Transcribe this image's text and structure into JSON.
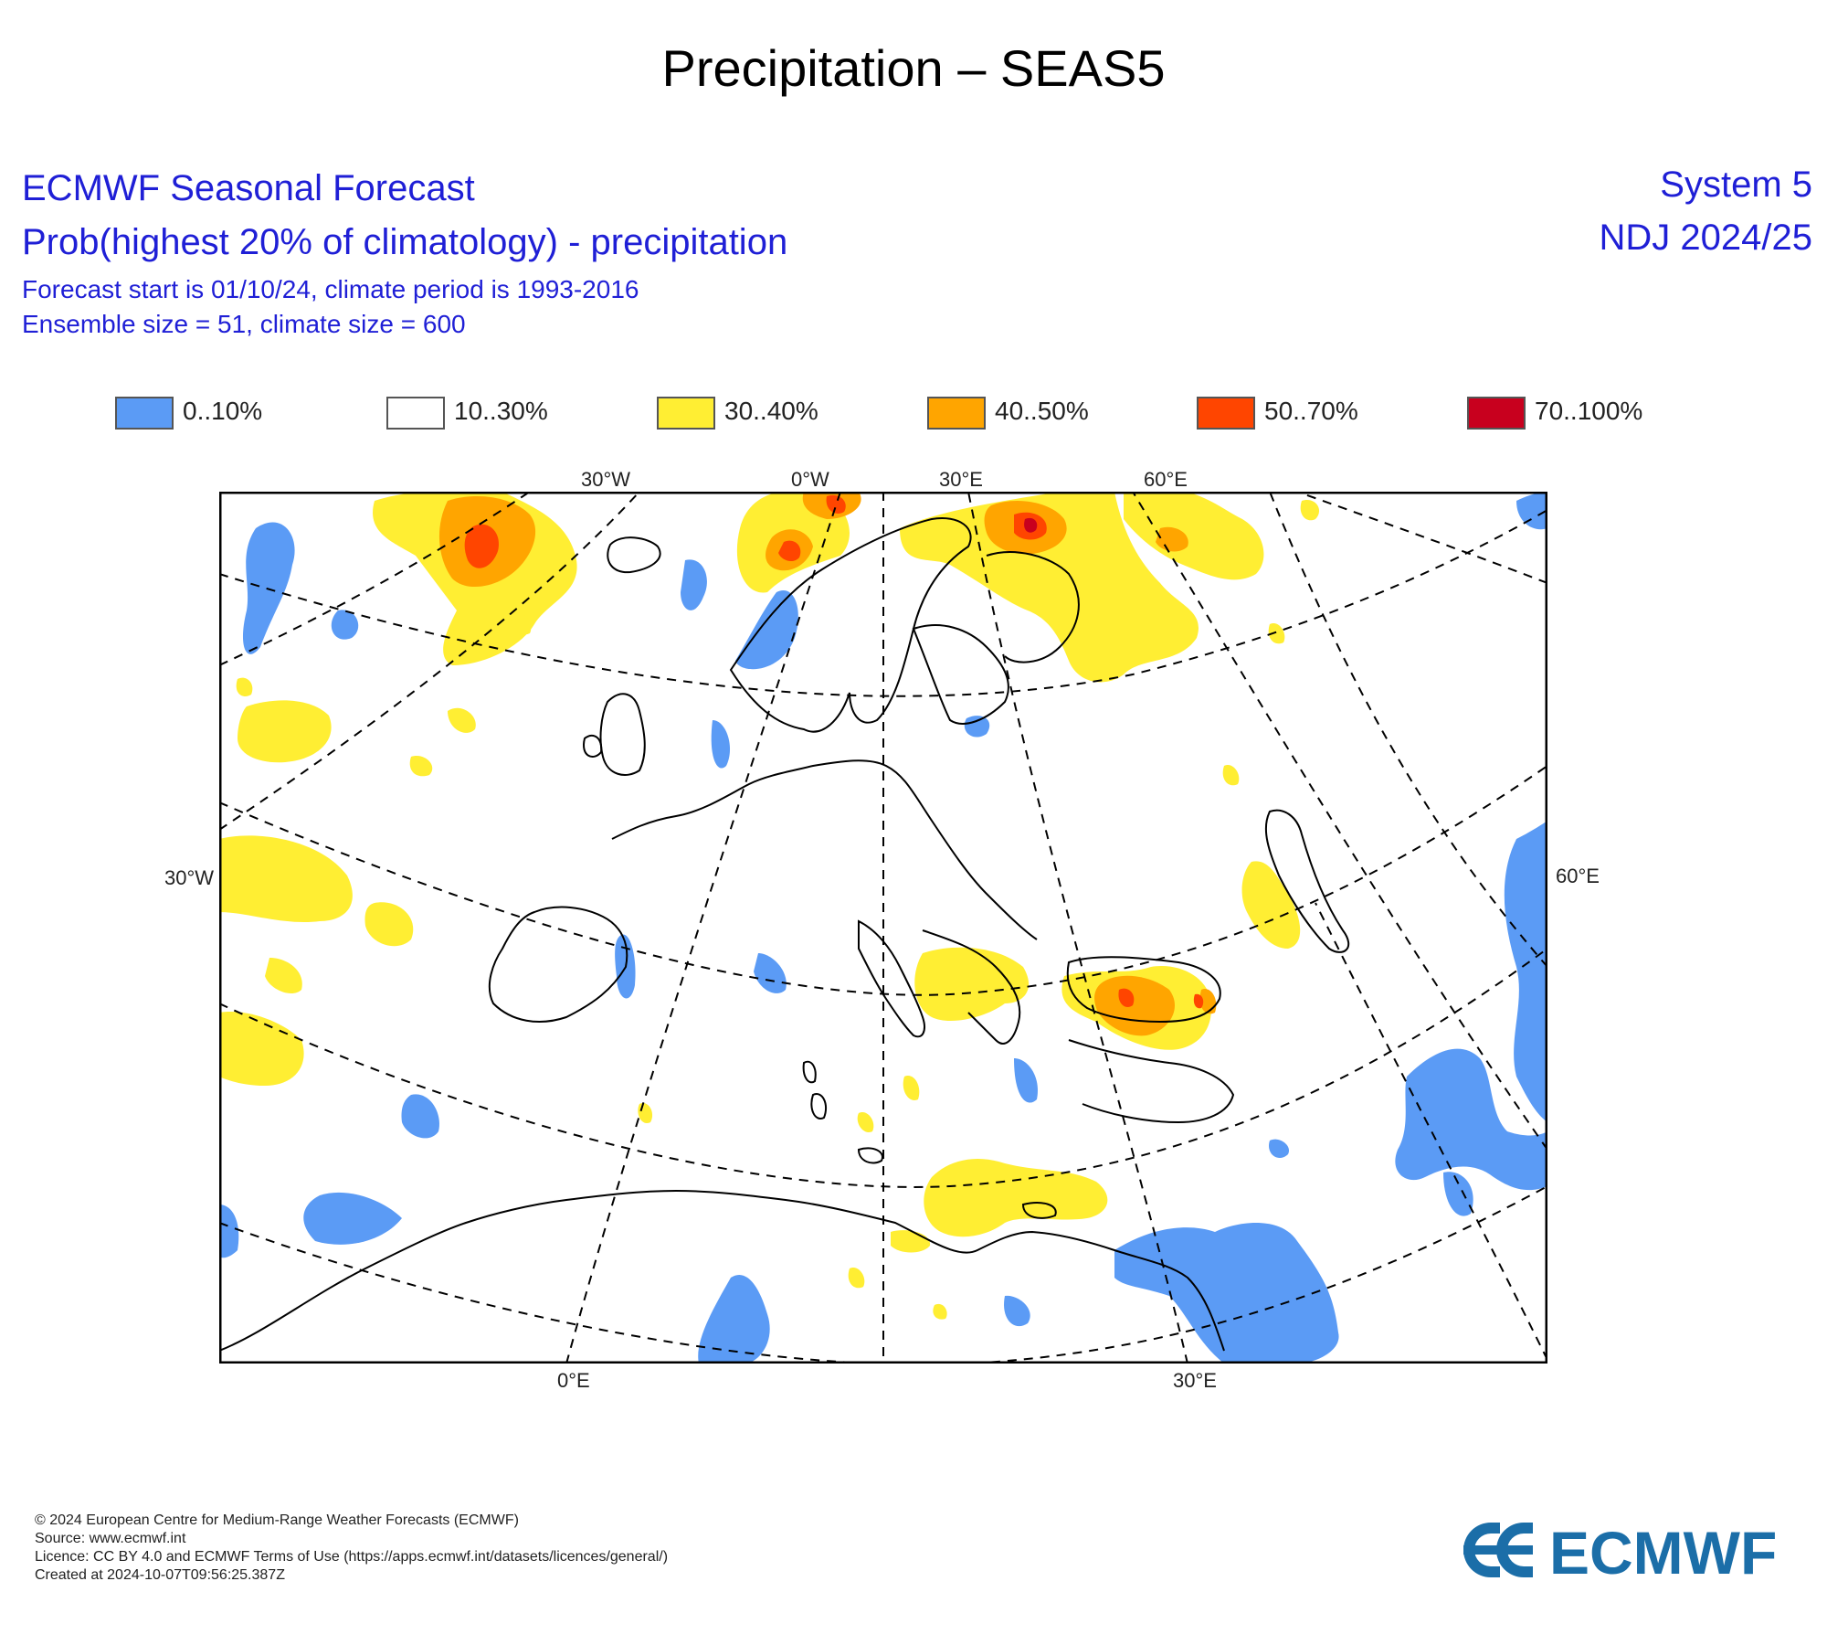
{
  "title": "Precipitation – SEAS5",
  "header": {
    "line1": "ECMWF Seasonal Forecast",
    "line2": "Prob(highest 20% of climatology) - precipitation",
    "line3": "Forecast start is 01/10/24, climate period is 1993-2016",
    "line4": "Ensemble size = 51, climate size = 600",
    "system": "System 5",
    "period": "NDJ 2024/25"
  },
  "legend": [
    {
      "label": "0..10%",
      "color": "#5b9bf5"
    },
    {
      "label": "10..30%",
      "color": "#ffffff"
    },
    {
      "label": "30..40%",
      "color": "#ffee33"
    },
    {
      "label": "40..50%",
      "color": "#ffa500"
    },
    {
      "label": "50..70%",
      "color": "#ff4500"
    },
    {
      "label": "70..100%",
      "color": "#c8001e"
    }
  ],
  "map": {
    "region": "Europe",
    "top_labels": [
      "30°W",
      "0°W",
      "30°E",
      "60°E"
    ],
    "left_label": "30°W",
    "right_label": "60°E",
    "bottom_labels": [
      "0°E",
      "30°E"
    ]
  },
  "footer": {
    "line1": "© 2024 European Centre for Medium-Range Weather Forecasts (ECMWF)",
    "line2": "Source: www.ecmwf.int",
    "line3": "Licence: CC BY 4.0 and ECMWF Terms of Use (https://apps.ecmwf.int/datasets/licences/general/)",
    "line4": "Created at 2024-10-07T09:56:25.387Z"
  },
  "logo_text": "ECMWF"
}
